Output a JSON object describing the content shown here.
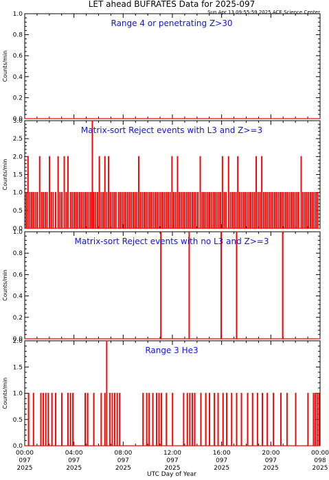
{
  "header": {
    "title": "LET ahead BUFRATES Data for 2025-097",
    "timestamp": "Sun Apr 13 09:55:59 2025 ACE Science Center"
  },
  "x_axis": {
    "label": "UTC Day of Year",
    "ticks": [
      {
        "time": "00:00",
        "doy": "097",
        "year": "2025"
      },
      {
        "time": "04:00",
        "doy": "097",
        "year": "2025"
      },
      {
        "time": "08:00",
        "doy": "097",
        "year": "2025"
      },
      {
        "time": "12:00",
        "doy": "097",
        "year": "2025"
      },
      {
        "time": "16:00",
        "doy": "097",
        "year": "2025"
      },
      {
        "time": "20:00",
        "doy": "097",
        "year": "2025"
      },
      {
        "time": "00:00",
        "doy": "098",
        "year": "2025"
      }
    ]
  },
  "colors": {
    "line": "#ff0000",
    "panel_title": "#1010ff",
    "axis": "#000000"
  },
  "chart_data": [
    {
      "type": "line",
      "title": "Range 4 or   penetrating Z>30",
      "ylabel": "Counts/min",
      "ylim": [
        0,
        1.0
      ],
      "yticks": [
        "0.0",
        "0.2",
        "0.4",
        "0.6",
        "0.8",
        "1.0"
      ],
      "xlim_hours": [
        0,
        24
      ],
      "baseline": 0,
      "spikes": []
    },
    {
      "type": "line",
      "title": "Matrix-sort Reject events with L3 and Z>=3",
      "ylabel": "Counts/min",
      "ylim": [
        0,
        3.0
      ],
      "yticks": [
        "0.0",
        "0.5",
        "1.0",
        "1.5",
        "2.0",
        "2.5",
        "3.0"
      ],
      "xlim_hours": [
        0,
        24
      ],
      "baseline": 0,
      "spikes": [
        {
          "h": 0.1,
          "v": 1
        },
        {
          "h": 0.25,
          "v": 2
        },
        {
          "h": 0.4,
          "v": 1
        },
        {
          "h": 0.55,
          "v": 1
        },
        {
          "h": 0.7,
          "v": 1
        },
        {
          "h": 0.85,
          "v": 1
        },
        {
          "h": 1.0,
          "v": 1
        },
        {
          "h": 1.2,
          "v": 2
        },
        {
          "h": 1.35,
          "v": 1
        },
        {
          "h": 1.5,
          "v": 1
        },
        {
          "h": 1.65,
          "v": 1
        },
        {
          "h": 1.8,
          "v": 1
        },
        {
          "h": 2.0,
          "v": 2
        },
        {
          "h": 2.15,
          "v": 1
        },
        {
          "h": 2.3,
          "v": 1
        },
        {
          "h": 2.5,
          "v": 1
        },
        {
          "h": 2.7,
          "v": 2
        },
        {
          "h": 2.85,
          "v": 1
        },
        {
          "h": 3.0,
          "v": 1
        },
        {
          "h": 3.2,
          "v": 2
        },
        {
          "h": 3.35,
          "v": 1
        },
        {
          "h": 3.5,
          "v": 2
        },
        {
          "h": 3.7,
          "v": 1
        },
        {
          "h": 3.85,
          "v": 1
        },
        {
          "h": 4.0,
          "v": 1
        },
        {
          "h": 4.15,
          "v": 1
        },
        {
          "h": 4.3,
          "v": 1
        },
        {
          "h": 4.45,
          "v": 1
        },
        {
          "h": 4.6,
          "v": 1
        },
        {
          "h": 4.75,
          "v": 1
        },
        {
          "h": 4.9,
          "v": 1
        },
        {
          "h": 5.05,
          "v": 1
        },
        {
          "h": 5.2,
          "v": 1
        },
        {
          "h": 5.35,
          "v": 1
        },
        {
          "h": 5.48,
          "v": 3
        },
        {
          "h": 5.6,
          "v": 1
        },
        {
          "h": 5.75,
          "v": 1
        },
        {
          "h": 5.9,
          "v": 1
        },
        {
          "h": 6.05,
          "v": 2
        },
        {
          "h": 6.2,
          "v": 1
        },
        {
          "h": 6.35,
          "v": 1
        },
        {
          "h": 6.5,
          "v": 2
        },
        {
          "h": 6.65,
          "v": 1
        },
        {
          "h": 6.8,
          "v": 2
        },
        {
          "h": 6.95,
          "v": 1
        },
        {
          "h": 7.1,
          "v": 1
        },
        {
          "h": 7.25,
          "v": 1
        },
        {
          "h": 7.4,
          "v": 1
        },
        {
          "h": 7.6,
          "v": 1
        },
        {
          "h": 7.75,
          "v": 1
        },
        {
          "h": 7.9,
          "v": 1
        },
        {
          "h": 8.05,
          "v": 1
        },
        {
          "h": 8.2,
          "v": 1
        },
        {
          "h": 8.35,
          "v": 1
        },
        {
          "h": 8.5,
          "v": 1
        },
        {
          "h": 8.65,
          "v": 1
        },
        {
          "h": 8.8,
          "v": 1
        },
        {
          "h": 8.95,
          "v": 1
        },
        {
          "h": 9.1,
          "v": 1
        },
        {
          "h": 9.25,
          "v": 2
        },
        {
          "h": 9.4,
          "v": 1
        },
        {
          "h": 9.55,
          "v": 1
        },
        {
          "h": 9.7,
          "v": 1
        },
        {
          "h": 9.85,
          "v": 1
        },
        {
          "h": 10.0,
          "v": 1
        },
        {
          "h": 10.15,
          "v": 1
        },
        {
          "h": 10.3,
          "v": 1
        },
        {
          "h": 10.45,
          "v": 1
        },
        {
          "h": 10.6,
          "v": 1
        },
        {
          "h": 10.75,
          "v": 1
        },
        {
          "h": 10.9,
          "v": 1
        },
        {
          "h": 11.05,
          "v": 1
        },
        {
          "h": 11.2,
          "v": 1
        },
        {
          "h": 11.35,
          "v": 1
        },
        {
          "h": 11.5,
          "v": 1
        },
        {
          "h": 11.65,
          "v": 1
        },
        {
          "h": 11.8,
          "v": 1
        },
        {
          "h": 11.95,
          "v": 2
        },
        {
          "h": 12.1,
          "v": 1
        },
        {
          "h": 12.25,
          "v": 1
        },
        {
          "h": 12.4,
          "v": 2
        },
        {
          "h": 12.55,
          "v": 1
        },
        {
          "h": 12.7,
          "v": 1
        },
        {
          "h": 12.85,
          "v": 1
        },
        {
          "h": 13.0,
          "v": 1
        },
        {
          "h": 13.15,
          "v": 1
        },
        {
          "h": 13.3,
          "v": 1
        },
        {
          "h": 13.45,
          "v": 1
        },
        {
          "h": 13.6,
          "v": 1
        },
        {
          "h": 13.75,
          "v": 1
        },
        {
          "h": 13.9,
          "v": 1
        },
        {
          "h": 14.05,
          "v": 1
        },
        {
          "h": 14.25,
          "v": 2
        },
        {
          "h": 14.4,
          "v": 1
        },
        {
          "h": 14.55,
          "v": 1
        },
        {
          "h": 14.7,
          "v": 1
        },
        {
          "h": 14.85,
          "v": 1
        },
        {
          "h": 15.0,
          "v": 1
        },
        {
          "h": 15.15,
          "v": 1
        },
        {
          "h": 15.3,
          "v": 1
        },
        {
          "h": 15.45,
          "v": 1
        },
        {
          "h": 15.6,
          "v": 1
        },
        {
          "h": 15.75,
          "v": 1
        },
        {
          "h": 15.9,
          "v": 1
        },
        {
          "h": 16.05,
          "v": 2
        },
        {
          "h": 16.2,
          "v": 1
        },
        {
          "h": 16.35,
          "v": 1
        },
        {
          "h": 16.55,
          "v": 2
        },
        {
          "h": 16.7,
          "v": 1
        },
        {
          "h": 16.85,
          "v": 1
        },
        {
          "h": 17.0,
          "v": 1
        },
        {
          "h": 17.15,
          "v": 1
        },
        {
          "h": 17.3,
          "v": 2
        },
        {
          "h": 17.45,
          "v": 1
        },
        {
          "h": 17.6,
          "v": 1
        },
        {
          "h": 17.75,
          "v": 1
        },
        {
          "h": 17.9,
          "v": 1
        },
        {
          "h": 18.05,
          "v": 1
        },
        {
          "h": 18.2,
          "v": 1
        },
        {
          "h": 18.35,
          "v": 1
        },
        {
          "h": 18.5,
          "v": 1
        },
        {
          "h": 18.65,
          "v": 1
        },
        {
          "h": 18.8,
          "v": 2
        },
        {
          "h": 18.95,
          "v": 1
        },
        {
          "h": 19.1,
          "v": 1
        },
        {
          "h": 19.25,
          "v": 2
        },
        {
          "h": 19.4,
          "v": 1
        },
        {
          "h": 19.55,
          "v": 1
        },
        {
          "h": 19.7,
          "v": 1
        },
        {
          "h": 19.85,
          "v": 1
        },
        {
          "h": 20.0,
          "v": 1
        },
        {
          "h": 20.15,
          "v": 1
        },
        {
          "h": 20.3,
          "v": 1
        },
        {
          "h": 20.45,
          "v": 1
        },
        {
          "h": 20.6,
          "v": 1
        },
        {
          "h": 20.75,
          "v": 1
        },
        {
          "h": 20.9,
          "v": 1
        },
        {
          "h": 21.05,
          "v": 1
        },
        {
          "h": 21.2,
          "v": 1
        },
        {
          "h": 21.35,
          "v": 1
        },
        {
          "h": 21.5,
          "v": 1
        },
        {
          "h": 21.65,
          "v": 1
        },
        {
          "h": 21.8,
          "v": 1
        },
        {
          "h": 21.95,
          "v": 1
        },
        {
          "h": 22.1,
          "v": 1
        },
        {
          "h": 22.25,
          "v": 1
        },
        {
          "h": 22.45,
          "v": 2
        },
        {
          "h": 22.6,
          "v": 1
        },
        {
          "h": 22.75,
          "v": 1
        },
        {
          "h": 22.9,
          "v": 1
        },
        {
          "h": 23.05,
          "v": 1
        },
        {
          "h": 23.2,
          "v": 1
        },
        {
          "h": 23.35,
          "v": 1
        },
        {
          "h": 23.5,
          "v": 1
        },
        {
          "h": 23.65,
          "v": 1
        },
        {
          "h": 23.8,
          "v": 1
        }
      ]
    },
    {
      "type": "line",
      "title": "Matrix-sort Reject events with no L3 and Z>=3",
      "ylabel": "Counts/min",
      "ylim": [
        0,
        1.0
      ],
      "yticks": [
        "0.0",
        "0.2",
        "0.4",
        "0.6",
        "0.8",
        "1.0"
      ],
      "xlim_hours": [
        0,
        24
      ],
      "baseline": 0,
      "spikes": [
        {
          "h": 11.05,
          "v": 1
        },
        {
          "h": 13.35,
          "v": 1
        },
        {
          "h": 15.95,
          "v": 1
        },
        {
          "h": 17.2,
          "v": 1
        },
        {
          "h": 20.95,
          "v": 1
        }
      ]
    },
    {
      "type": "line",
      "title": "Range 3 He3",
      "ylabel": "Counts/min",
      "ylim": [
        0,
        2.0
      ],
      "yticks": [
        "0.0",
        "0.5",
        "1.0",
        "1.5",
        "2.0"
      ],
      "xlim_hours": [
        0,
        24
      ],
      "baseline": 0,
      "spikes": [
        {
          "h": 0.3,
          "v": 1
        },
        {
          "h": 0.7,
          "v": 1
        },
        {
          "h": 1.3,
          "v": 1
        },
        {
          "h": 1.5,
          "v": 1
        },
        {
          "h": 1.7,
          "v": 1
        },
        {
          "h": 1.9,
          "v": 1
        },
        {
          "h": 2.2,
          "v": 1
        },
        {
          "h": 2.5,
          "v": 1
        },
        {
          "h": 3.0,
          "v": 1
        },
        {
          "h": 3.5,
          "v": 1
        },
        {
          "h": 3.7,
          "v": 1
        },
        {
          "h": 3.9,
          "v": 1
        },
        {
          "h": 4.9,
          "v": 1
        },
        {
          "h": 5.1,
          "v": 1
        },
        {
          "h": 5.6,
          "v": 1
        },
        {
          "h": 6.2,
          "v": 1
        },
        {
          "h": 6.5,
          "v": 1
        },
        {
          "h": 6.65,
          "v": 2
        },
        {
          "h": 6.9,
          "v": 1
        },
        {
          "h": 7.1,
          "v": 1
        },
        {
          "h": 7.3,
          "v": 1
        },
        {
          "h": 7.5,
          "v": 1
        },
        {
          "h": 7.7,
          "v": 1
        },
        {
          "h": 9.6,
          "v": 1
        },
        {
          "h": 9.9,
          "v": 1
        },
        {
          "h": 10.1,
          "v": 1
        },
        {
          "h": 10.4,
          "v": 1
        },
        {
          "h": 10.7,
          "v": 1
        },
        {
          "h": 10.9,
          "v": 1
        },
        {
          "h": 11.1,
          "v": 1
        },
        {
          "h": 11.5,
          "v": 1
        },
        {
          "h": 12.0,
          "v": 1
        },
        {
          "h": 12.9,
          "v": 1
        },
        {
          "h": 13.2,
          "v": 1
        },
        {
          "h": 13.4,
          "v": 1
        },
        {
          "h": 13.6,
          "v": 1
        },
        {
          "h": 13.8,
          "v": 1
        },
        {
          "h": 14.3,
          "v": 1
        },
        {
          "h": 14.7,
          "v": 1
        },
        {
          "h": 15.0,
          "v": 1
        },
        {
          "h": 15.4,
          "v": 1
        },
        {
          "h": 15.7,
          "v": 1
        },
        {
          "h": 16.1,
          "v": 1
        },
        {
          "h": 16.4,
          "v": 1
        },
        {
          "h": 16.8,
          "v": 1
        },
        {
          "h": 17.2,
          "v": 1
        },
        {
          "h": 17.6,
          "v": 1
        },
        {
          "h": 18.1,
          "v": 1
        },
        {
          "h": 18.5,
          "v": 1
        },
        {
          "h": 18.9,
          "v": 1
        },
        {
          "h": 19.3,
          "v": 1
        },
        {
          "h": 19.7,
          "v": 1
        },
        {
          "h": 20.2,
          "v": 1
        },
        {
          "h": 20.8,
          "v": 1
        },
        {
          "h": 21.3,
          "v": 1
        },
        {
          "h": 22.0,
          "v": 1
        },
        {
          "h": 23.0,
          "v": 1
        },
        {
          "h": 23.45,
          "v": 1
        },
        {
          "h": 23.6,
          "v": 1
        },
        {
          "h": 23.75,
          "v": 1
        },
        {
          "h": 23.9,
          "v": 1
        }
      ]
    }
  ]
}
